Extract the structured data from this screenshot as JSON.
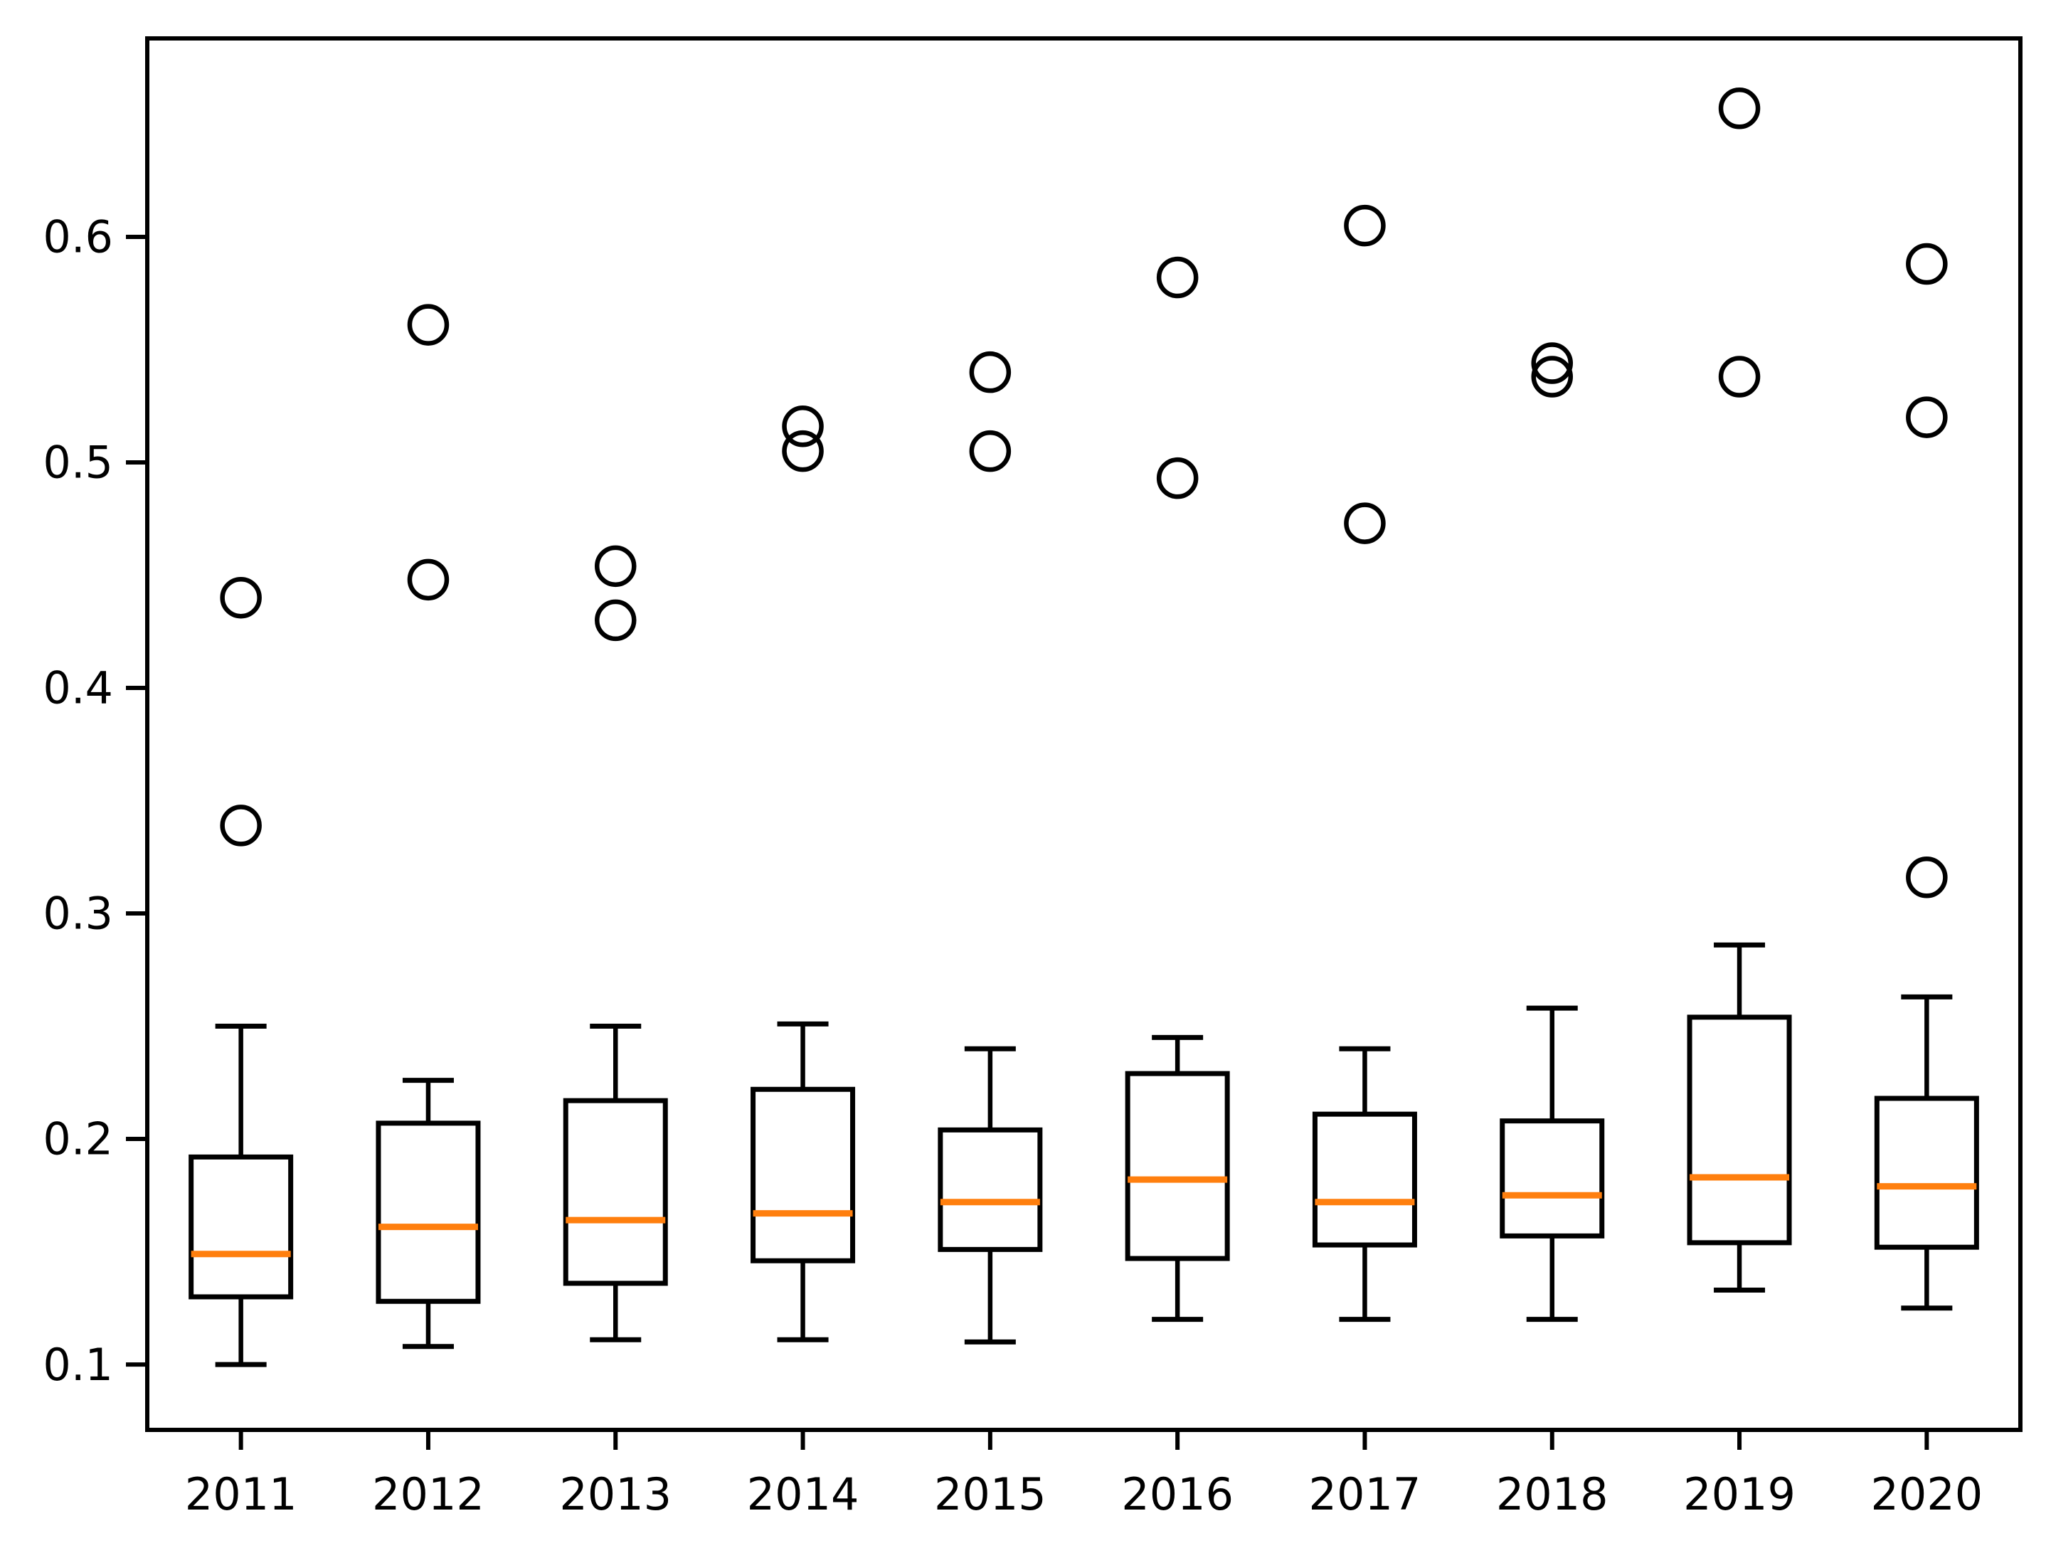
{
  "chart_data": {
    "type": "boxplot",
    "title": "",
    "xlabel": "",
    "ylabel": "",
    "categories": [
      "2011",
      "2012",
      "2013",
      "2014",
      "2015",
      "2016",
      "2017",
      "2018",
      "2019",
      "2020"
    ],
    "yticks": [
      0.1,
      0.2,
      0.3,
      0.4,
      0.5,
      0.6
    ],
    "ylim": [
      0.071,
      0.688
    ],
    "grid": false,
    "legend": "none",
    "colors": {
      "line": "#000000",
      "median": "#ff7f0e",
      "background": "#ffffff",
      "tick_label": "#000000"
    },
    "series": [
      {
        "category": "2011",
        "whisker_low": 0.1,
        "q1": 0.13,
        "median": 0.149,
        "q3": 0.192,
        "whisker_high": 0.25,
        "outliers": [
          0.44,
          0.339
        ]
      },
      {
        "category": "2012",
        "whisker_low": 0.108,
        "q1": 0.128,
        "median": 0.161,
        "q3": 0.207,
        "whisker_high": 0.226,
        "outliers": [
          0.561,
          0.448
        ]
      },
      {
        "category": "2013",
        "whisker_low": 0.111,
        "q1": 0.136,
        "median": 0.164,
        "q3": 0.217,
        "whisker_high": 0.25,
        "outliers": [
          0.454,
          0.43
        ]
      },
      {
        "category": "2014",
        "whisker_low": 0.111,
        "q1": 0.146,
        "median": 0.167,
        "q3": 0.222,
        "whisker_high": 0.251,
        "outliers": [
          0.516,
          0.505
        ]
      },
      {
        "category": "2015",
        "whisker_low": 0.11,
        "q1": 0.151,
        "median": 0.172,
        "q3": 0.204,
        "whisker_high": 0.24,
        "outliers": [
          0.54,
          0.505
        ]
      },
      {
        "category": "2016",
        "whisker_low": 0.12,
        "q1": 0.147,
        "median": 0.182,
        "q3": 0.229,
        "whisker_high": 0.245,
        "outliers": [
          0.582,
          0.493
        ]
      },
      {
        "category": "2017",
        "whisker_low": 0.12,
        "q1": 0.153,
        "median": 0.172,
        "q3": 0.211,
        "whisker_high": 0.24,
        "outliers": [
          0.605,
          0.473
        ]
      },
      {
        "category": "2018",
        "whisker_low": 0.12,
        "q1": 0.157,
        "median": 0.175,
        "q3": 0.208,
        "whisker_high": 0.258,
        "outliers": [
          0.544,
          0.538
        ]
      },
      {
        "category": "2019",
        "whisker_low": 0.133,
        "q1": 0.154,
        "median": 0.183,
        "q3": 0.254,
        "whisker_high": 0.286,
        "outliers": [
          0.657,
          0.538
        ]
      },
      {
        "category": "2020",
        "whisker_low": 0.125,
        "q1": 0.152,
        "median": 0.179,
        "q3": 0.218,
        "whisker_high": 0.263,
        "outliers": [
          0.588,
          0.52,
          0.316
        ]
      }
    ]
  }
}
